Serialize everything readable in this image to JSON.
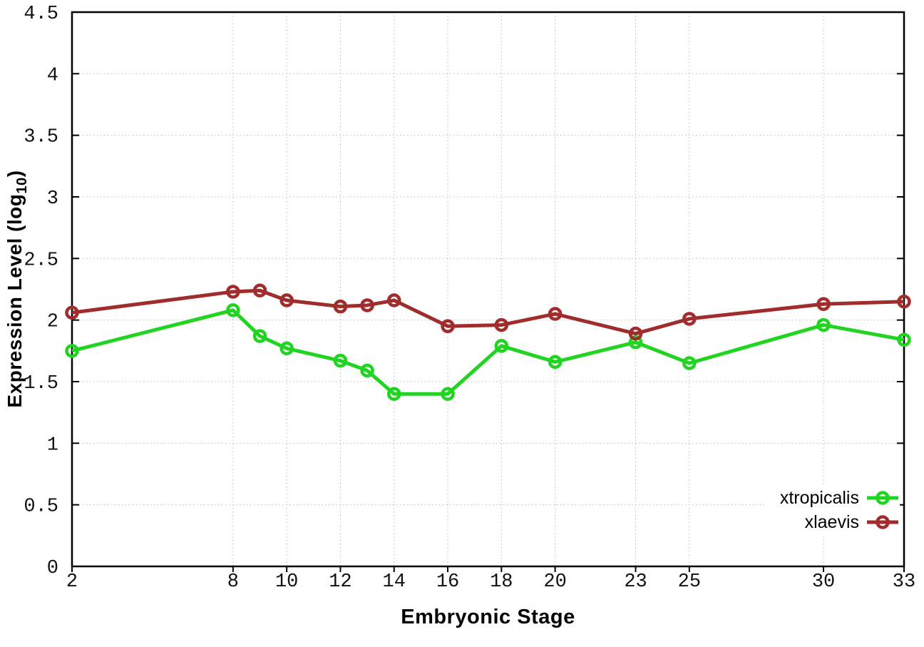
{
  "chart_data": {
    "type": "line",
    "title": "",
    "xlabel": "Embryonic Stage",
    "ylabel": "Expression Level (log10)",
    "ylabel_parts": {
      "prefix": "Expression Level (log",
      "sub": "10",
      "suffix": ")"
    },
    "x": [
      2,
      8,
      9,
      10,
      12,
      13,
      14,
      16,
      18,
      20,
      23,
      25,
      30,
      33
    ],
    "series": [
      {
        "name": "xtropicalis",
        "color": "#22d422",
        "values": [
          1.75,
          2.08,
          1.87,
          1.77,
          1.67,
          1.59,
          1.4,
          1.4,
          1.79,
          1.66,
          1.82,
          1.65,
          1.96,
          1.84
        ]
      },
      {
        "name": "xlaevis",
        "color": "#a02c2c",
        "values": [
          2.06,
          2.23,
          2.24,
          2.16,
          2.11,
          2.12,
          2.16,
          1.95,
          1.96,
          2.05,
          1.89,
          2.01,
          2.13,
          2.15
        ]
      }
    ],
    "xlim": [
      2,
      33
    ],
    "ylim": [
      0,
      4.5
    ],
    "xticks": {
      "values": [
        2,
        8,
        10,
        12,
        14,
        16,
        18,
        20,
        23,
        25,
        30,
        33
      ],
      "labels": [
        "2",
        "8",
        "10",
        "12",
        "14",
        "16",
        "18",
        "20",
        "23",
        "25",
        "30",
        "33"
      ]
    },
    "yticks": {
      "values": [
        0,
        0.5,
        1,
        1.5,
        2,
        2.5,
        3,
        3.5,
        4,
        4.5
      ],
      "labels": [
        "0",
        "0.5",
        "1",
        "1.5",
        "2",
        "2.5",
        "3",
        "3.5",
        "4",
        "4.5"
      ]
    },
    "grid": true,
    "legend_position": "bottom-right",
    "marker": "open-circle",
    "grid_color": "#bbbbbb",
    "border_color": "#000000"
  }
}
